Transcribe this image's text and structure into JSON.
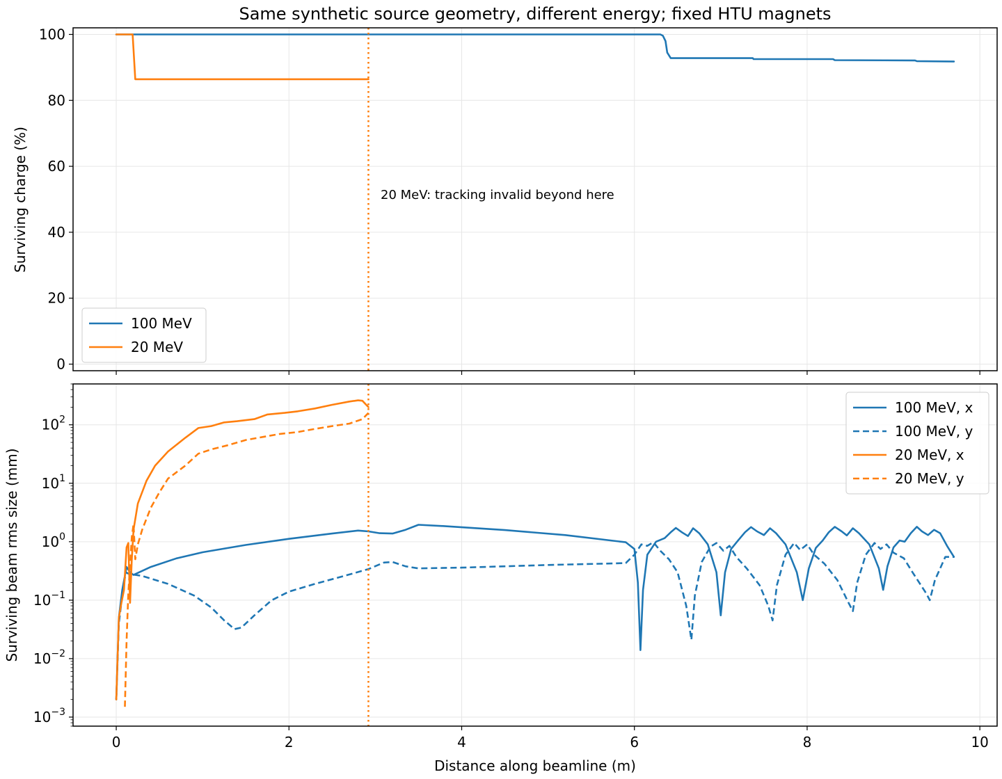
{
  "figure": {
    "title": "Same synthetic source geometry, different energy; fixed HTU magnets",
    "xlabel": "Distance along beamline (m)"
  },
  "colors": {
    "blue": "#1f77b4",
    "orange": "#ff7f0e",
    "grid": "#e6e6e6"
  },
  "chart_data": [
    {
      "type": "line",
      "panel": "top",
      "xlabel": "Distance along beamline (m)",
      "ylabel": "Surviving charge (%)",
      "xlim": [
        -0.5,
        10.2
      ],
      "ylim": [
        -2,
        102
      ],
      "yscale": "linear",
      "xticks": [
        0,
        2,
        4,
        6,
        8,
        10
      ],
      "yticks": [
        0,
        20,
        40,
        60,
        80,
        100
      ],
      "grid": true,
      "legend": "lower-left",
      "annotation": "20 MeV: tracking invalid beyond here",
      "vline_x": 2.92,
      "series": [
        {
          "name": "100 MeV",
          "color": "#1f77b4",
          "dash": "solid",
          "points": [
            [
              0,
              100
            ],
            [
              6.3,
              100
            ],
            [
              6.33,
              99.6
            ],
            [
              6.36,
              98
            ],
            [
              6.38,
              94.5
            ],
            [
              6.42,
              92.8
            ],
            [
              7.37,
              92.8
            ],
            [
              7.38,
              92.5
            ],
            [
              8.3,
              92.5
            ],
            [
              8.32,
              92.2
            ],
            [
              9.25,
              92.1
            ],
            [
              9.27,
              91.9
            ],
            [
              9.7,
              91.8
            ]
          ]
        },
        {
          "name": "20 MeV",
          "color": "#ff7f0e",
          "dash": "solid",
          "points": [
            [
              0,
              100
            ],
            [
              0.19,
              100
            ],
            [
              0.22,
              86.4
            ],
            [
              2.92,
              86.4
            ]
          ]
        }
      ]
    },
    {
      "type": "line",
      "panel": "bottom",
      "xlabel": "Distance along beamline (m)",
      "ylabel": "Surviving beam rms size (mm)",
      "xlim": [
        -0.5,
        10.2
      ],
      "yscale": "log",
      "ylim": [
        0.0007,
        500
      ],
      "xticks": [
        0,
        2,
        4,
        6,
        8,
        10
      ],
      "ytick_exponents": [
        -3,
        -2,
        -1,
        0,
        1,
        2
      ],
      "grid": true,
      "legend": "upper-right",
      "vline_x": 2.92,
      "series": [
        {
          "name": "100 MeV, x",
          "color": "#1f77b4",
          "dash": "solid",
          "points": [
            [
              0,
              0.002
            ],
            [
              0.03,
              0.05
            ],
            [
              0.07,
              0.15
            ],
            [
              0.12,
              0.37
            ],
            [
              0.16,
              0.3
            ],
            [
              0.2,
              0.27
            ],
            [
              0.4,
              0.37
            ],
            [
              0.7,
              0.52
            ],
            [
              1.0,
              0.66
            ],
            [
              1.5,
              0.88
            ],
            [
              2.0,
              1.12
            ],
            [
              2.5,
              1.38
            ],
            [
              2.8,
              1.55
            ],
            [
              2.92,
              1.5
            ],
            [
              3.05,
              1.4
            ],
            [
              3.2,
              1.38
            ],
            [
              3.35,
              1.6
            ],
            [
              3.5,
              1.95
            ],
            [
              3.8,
              1.85
            ],
            [
              4.5,
              1.58
            ],
            [
              5.2,
              1.3
            ],
            [
              5.9,
              0.98
            ],
            [
              6.0,
              0.75
            ],
            [
              6.04,
              0.2
            ],
            [
              6.07,
              0.014
            ],
            [
              6.1,
              0.15
            ],
            [
              6.15,
              0.6
            ],
            [
              6.25,
              1.0
            ],
            [
              6.35,
              1.15
            ],
            [
              6.42,
              1.45
            ],
            [
              6.48,
              1.72
            ],
            [
              6.55,
              1.45
            ],
            [
              6.62,
              1.25
            ],
            [
              6.68,
              1.7
            ],
            [
              6.75,
              1.4
            ],
            [
              6.85,
              0.9
            ],
            [
              6.95,
              0.3
            ],
            [
              7.0,
              0.055
            ],
            [
              7.05,
              0.3
            ],
            [
              7.12,
              0.75
            ],
            [
              7.2,
              1.05
            ],
            [
              7.28,
              1.45
            ],
            [
              7.35,
              1.78
            ],
            [
              7.42,
              1.5
            ],
            [
              7.5,
              1.3
            ],
            [
              7.57,
              1.7
            ],
            [
              7.64,
              1.4
            ],
            [
              7.75,
              0.9
            ],
            [
              7.88,
              0.3
            ],
            [
              7.95,
              0.1
            ],
            [
              8.02,
              0.35
            ],
            [
              8.1,
              0.78
            ],
            [
              8.18,
              1.05
            ],
            [
              8.25,
              1.45
            ],
            [
              8.32,
              1.8
            ],
            [
              8.4,
              1.5
            ],
            [
              8.46,
              1.28
            ],
            [
              8.53,
              1.7
            ],
            [
              8.6,
              1.4
            ],
            [
              8.72,
              0.9
            ],
            [
              8.83,
              0.35
            ],
            [
              8.88,
              0.15
            ],
            [
              8.93,
              0.38
            ],
            [
              9.0,
              0.8
            ],
            [
              9.07,
              1.05
            ],
            [
              9.13,
              1.0
            ],
            [
              9.2,
              1.4
            ],
            [
              9.27,
              1.8
            ],
            [
              9.33,
              1.5
            ],
            [
              9.4,
              1.3
            ],
            [
              9.47,
              1.6
            ],
            [
              9.54,
              1.4
            ],
            [
              9.62,
              0.85
            ],
            [
              9.7,
              0.55
            ]
          ]
        },
        {
          "name": "100 MeV, y",
          "color": "#1f77b4",
          "dash": "dashed",
          "points": [
            [
              0,
              0.002
            ],
            [
              0.03,
              0.04
            ],
            [
              0.07,
              0.12
            ],
            [
              0.11,
              0.3
            ],
            [
              0.15,
              0.28
            ],
            [
              0.3,
              0.26
            ],
            [
              0.6,
              0.19
            ],
            [
              0.9,
              0.12
            ],
            [
              1.1,
              0.075
            ],
            [
              1.25,
              0.045
            ],
            [
              1.37,
              0.032
            ],
            [
              1.45,
              0.034
            ],
            [
              1.6,
              0.055
            ],
            [
              1.8,
              0.1
            ],
            [
              2.0,
              0.14
            ],
            [
              2.3,
              0.19
            ],
            [
              2.6,
              0.25
            ],
            [
              2.92,
              0.34
            ],
            [
              3.1,
              0.44
            ],
            [
              3.2,
              0.45
            ],
            [
              3.35,
              0.38
            ],
            [
              3.5,
              0.35
            ],
            [
              4.0,
              0.36
            ],
            [
              5.0,
              0.4
            ],
            [
              5.9,
              0.43
            ],
            [
              6.0,
              0.6
            ],
            [
              6.08,
              0.9
            ],
            [
              6.15,
              0.85
            ],
            [
              6.22,
              0.98
            ],
            [
              6.3,
              0.7
            ],
            [
              6.4,
              0.5
            ],
            [
              6.5,
              0.3
            ],
            [
              6.6,
              0.08
            ],
            [
              6.66,
              0.021
            ],
            [
              6.7,
              0.12
            ],
            [
              6.78,
              0.45
            ],
            [
              6.88,
              0.82
            ],
            [
              6.95,
              0.95
            ],
            [
              7.03,
              0.7
            ],
            [
              7.1,
              0.85
            ],
            [
              7.18,
              0.55
            ],
            [
              7.3,
              0.35
            ],
            [
              7.45,
              0.18
            ],
            [
              7.55,
              0.08
            ],
            [
              7.6,
              0.045
            ],
            [
              7.65,
              0.18
            ],
            [
              7.75,
              0.6
            ],
            [
              7.85,
              0.95
            ],
            [
              7.92,
              0.72
            ],
            [
              8.0,
              0.9
            ],
            [
              8.08,
              0.6
            ],
            [
              8.2,
              0.42
            ],
            [
              8.35,
              0.22
            ],
            [
              8.48,
              0.09
            ],
            [
              8.53,
              0.065
            ],
            [
              8.58,
              0.2
            ],
            [
              8.68,
              0.6
            ],
            [
              8.78,
              0.95
            ],
            [
              8.85,
              0.75
            ],
            [
              8.92,
              0.9
            ],
            [
              9.0,
              0.65
            ],
            [
              9.12,
              0.52
            ],
            [
              9.22,
              0.3
            ],
            [
              9.38,
              0.13
            ],
            [
              9.42,
              0.1
            ],
            [
              9.48,
              0.22
            ],
            [
              9.6,
              0.55
            ],
            [
              9.7,
              0.55
            ]
          ]
        },
        {
          "name": "20 MeV, x",
          "color": "#ff7f0e",
          "dash": "solid",
          "points": [
            [
              0,
              0.002
            ],
            [
              0.03,
              0.05
            ],
            [
              0.06,
              0.09
            ],
            [
              0.09,
              0.15
            ],
            [
              0.12,
              0.8
            ],
            [
              0.14,
              0.95
            ],
            [
              0.16,
              0.09
            ],
            [
              0.18,
              0.5
            ],
            [
              0.2,
              1.6
            ],
            [
              0.25,
              4.5
            ],
            [
              0.35,
              11
            ],
            [
              0.45,
              20
            ],
            [
              0.6,
              35
            ],
            [
              0.8,
              60
            ],
            [
              0.95,
              88
            ],
            [
              1.1,
              95
            ],
            [
              1.25,
              110
            ],
            [
              1.4,
              115
            ],
            [
              1.6,
              125
            ],
            [
              1.75,
              150
            ],
            [
              1.95,
              160
            ],
            [
              2.1,
              170
            ],
            [
              2.3,
              190
            ],
            [
              2.5,
              220
            ],
            [
              2.7,
              250
            ],
            [
              2.8,
              262
            ],
            [
              2.85,
              258
            ],
            [
              2.92,
              200
            ]
          ]
        },
        {
          "name": "20 MeV, y",
          "color": "#ff7f0e",
          "dash": "dashed",
          "points": [
            [
              0.1,
              0.0015
            ],
            [
              0.12,
              0.02
            ],
            [
              0.14,
              0.13
            ],
            [
              0.16,
              0.4
            ],
            [
              0.18,
              1.2
            ],
            [
              0.2,
              2.0
            ],
            [
              0.22,
              0.5
            ],
            [
              0.25,
              0.9
            ],
            [
              0.3,
              1.6
            ],
            [
              0.4,
              3.8
            ],
            [
              0.5,
              7
            ],
            [
              0.6,
              12
            ],
            [
              0.8,
              20
            ],
            [
              0.95,
              32
            ],
            [
              1.1,
              38
            ],
            [
              1.3,
              45
            ],
            [
              1.5,
              55
            ],
            [
              1.7,
              62
            ],
            [
              1.9,
              70
            ],
            [
              2.1,
              75
            ],
            [
              2.3,
              85
            ],
            [
              2.5,
              95
            ],
            [
              2.7,
              105
            ],
            [
              2.85,
              125
            ],
            [
              2.92,
              160
            ]
          ]
        }
      ]
    }
  ]
}
